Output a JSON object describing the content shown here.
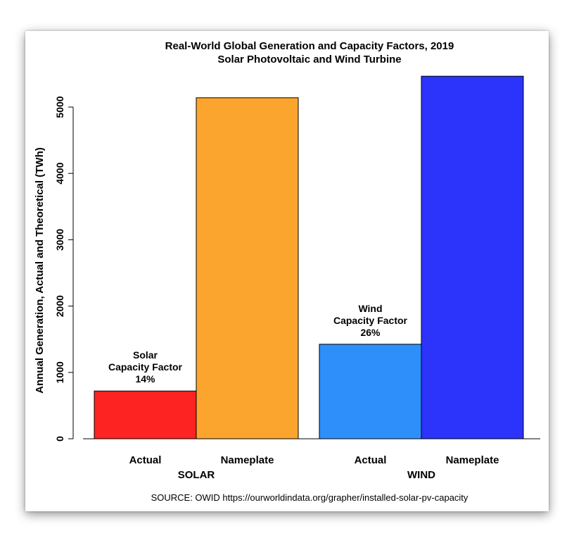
{
  "chart_data": {
    "type": "bar",
    "title": "Real-World Global Generation and Capacity Factors, 2019",
    "subtitle": "Solar Photovoltaic and Wind Turbine",
    "ylabel": "Annual Generation, Actual and Theoretical (TWh)",
    "ylim": [
      0,
      5500
    ],
    "yticks": [
      0,
      1000,
      2000,
      3000,
      4000,
      5000
    ],
    "grid": false,
    "groups": [
      {
        "name": "SOLAR",
        "bars": [
          {
            "label": "Actual",
            "value": 720,
            "color": "#fd2322"
          },
          {
            "label": "Nameplate",
            "value": 5140,
            "color": "#fba52e"
          }
        ],
        "annotation": [
          "Solar",
          "Capacity Factor",
          "14%"
        ]
      },
      {
        "name": "WIND",
        "bars": [
          {
            "label": "Actual",
            "value": 1425,
            "color": "#2e8ffb"
          },
          {
            "label": "Nameplate",
            "value": 5465,
            "color": "#2c33fa"
          }
        ],
        "annotation": [
          "Wind",
          "Capacity Factor",
          "26%"
        ]
      }
    ],
    "source": "SOURCE: OWID https://ourworldindata.org/grapher/installed-solar-pv-capacity"
  }
}
